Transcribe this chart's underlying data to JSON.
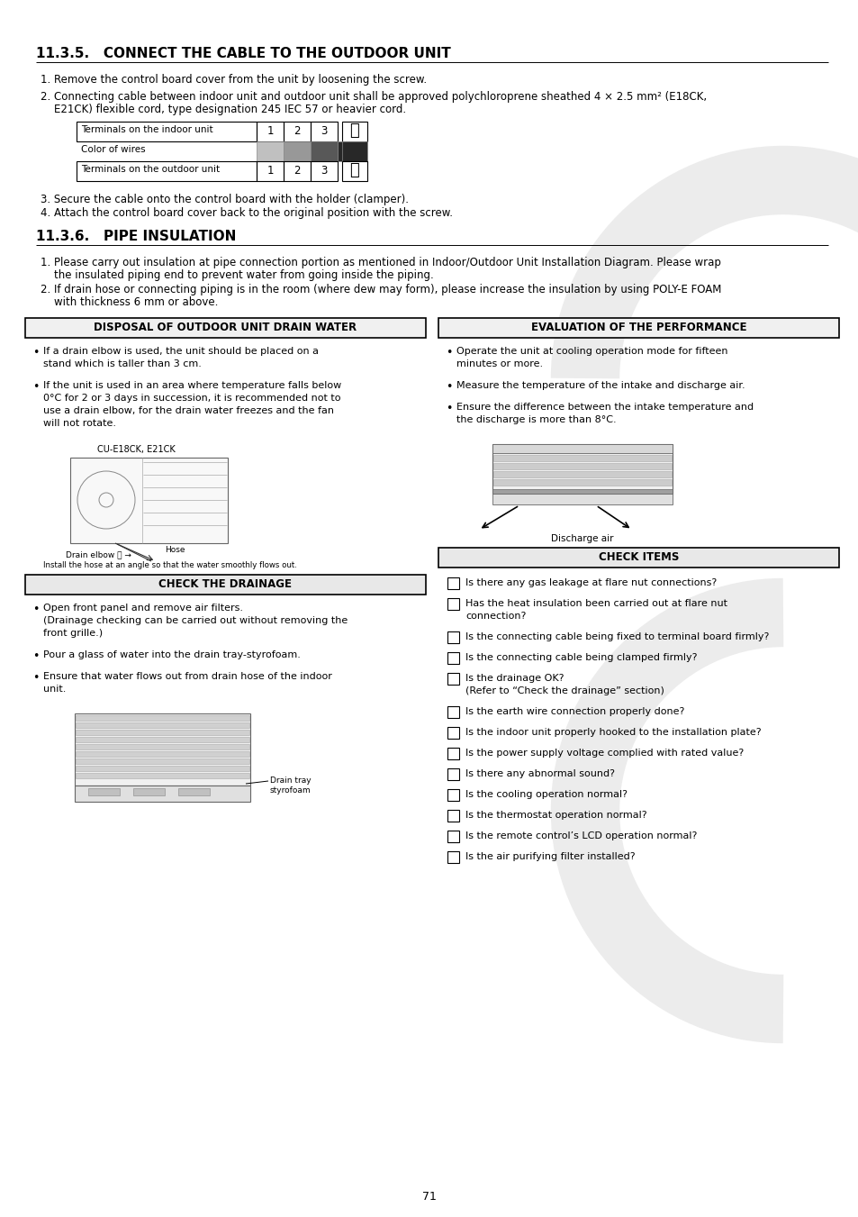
{
  "bg_color": "#ffffff",
  "page_number": "71",
  "section_1_title": "11.3.5.   CONNECT THE CABLE TO THE OUTDOOR UNIT",
  "section_2_title": "11.3.6.   PIPE INSULATION",
  "box1_title": "DISPOSAL OF OUTDOOR UNIT DRAIN WATER",
  "box2_title": "EVALUATION OF THE PERFORMANCE",
  "box3_title": "CHECK THE DRAINAGE",
  "box4_title": "CHECK ITEMS",
  "check_items": [
    "Is there any gas leakage at flare nut connections?",
    "Has the heat insulation been carried out at flare nut\nconnection?",
    "Is the connecting cable being fixed to terminal board firmly?",
    "Is the connecting cable being clamped firmly?",
    "Is the drainage OK?\n(Refer to “Check the drainage” section)",
    "Is the earth wire connection properly done?",
    "Is the indoor unit properly hooked to the installation plate?",
    "Is the power supply voltage complied with rated value?",
    "Is there any abnormal sound?",
    "Is the cooling operation normal?",
    "Is the thermostat operation normal?",
    "Is the remote control’s LCD operation normal?",
    "Is the air purifying filter installed?"
  ],
  "wire_colors_hex": [
    "#c0c0c0",
    "#989898",
    "#585858",
    "#282828"
  ]
}
